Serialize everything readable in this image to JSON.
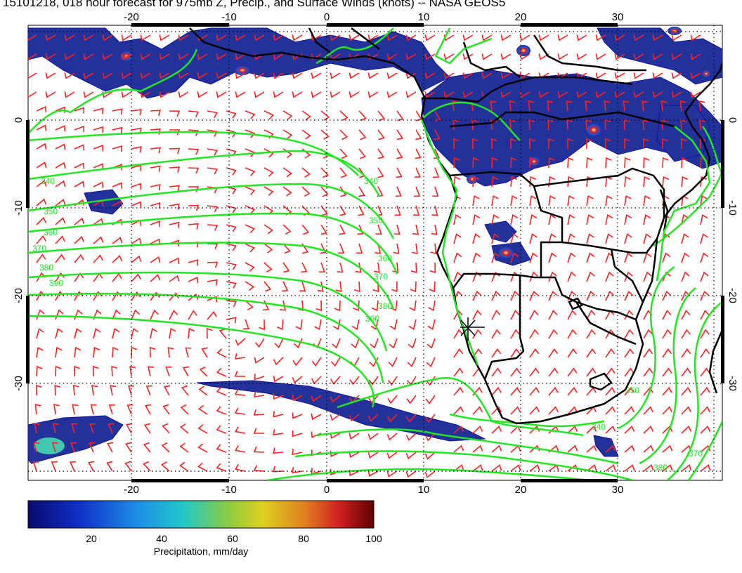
{
  "title": "15101218, 018 hour forecast for 975mb Z, Precip., and Surface Winds (knots) -- NASA GEOS5",
  "colorbar": {
    "label": "Precipitation, mm/day",
    "ticks": [
      "20",
      "40",
      "60",
      "80",
      "100"
    ],
    "range": [
      0,
      100
    ]
  },
  "map": {
    "lon_range": [
      -30,
      41
    ],
    "lat_range": [
      -40,
      10
    ],
    "lon_ticks": [
      "-20",
      "-10",
      "0",
      "10",
      "20",
      "30"
    ],
    "lat_ticks": [
      "0",
      "-10",
      "-20",
      "-30"
    ],
    "contour_labels": [
      "340",
      "350",
      "360",
      "370",
      "380",
      "390",
      "340",
      "350",
      "360",
      "370",
      "380",
      "390",
      "340",
      "370",
      "350",
      "380"
    ],
    "colors": {
      "contour": "#22e622",
      "wind": "#ff2020",
      "coast": "#000000",
      "grid": "#000000"
    },
    "marker": "station-cross"
  }
}
